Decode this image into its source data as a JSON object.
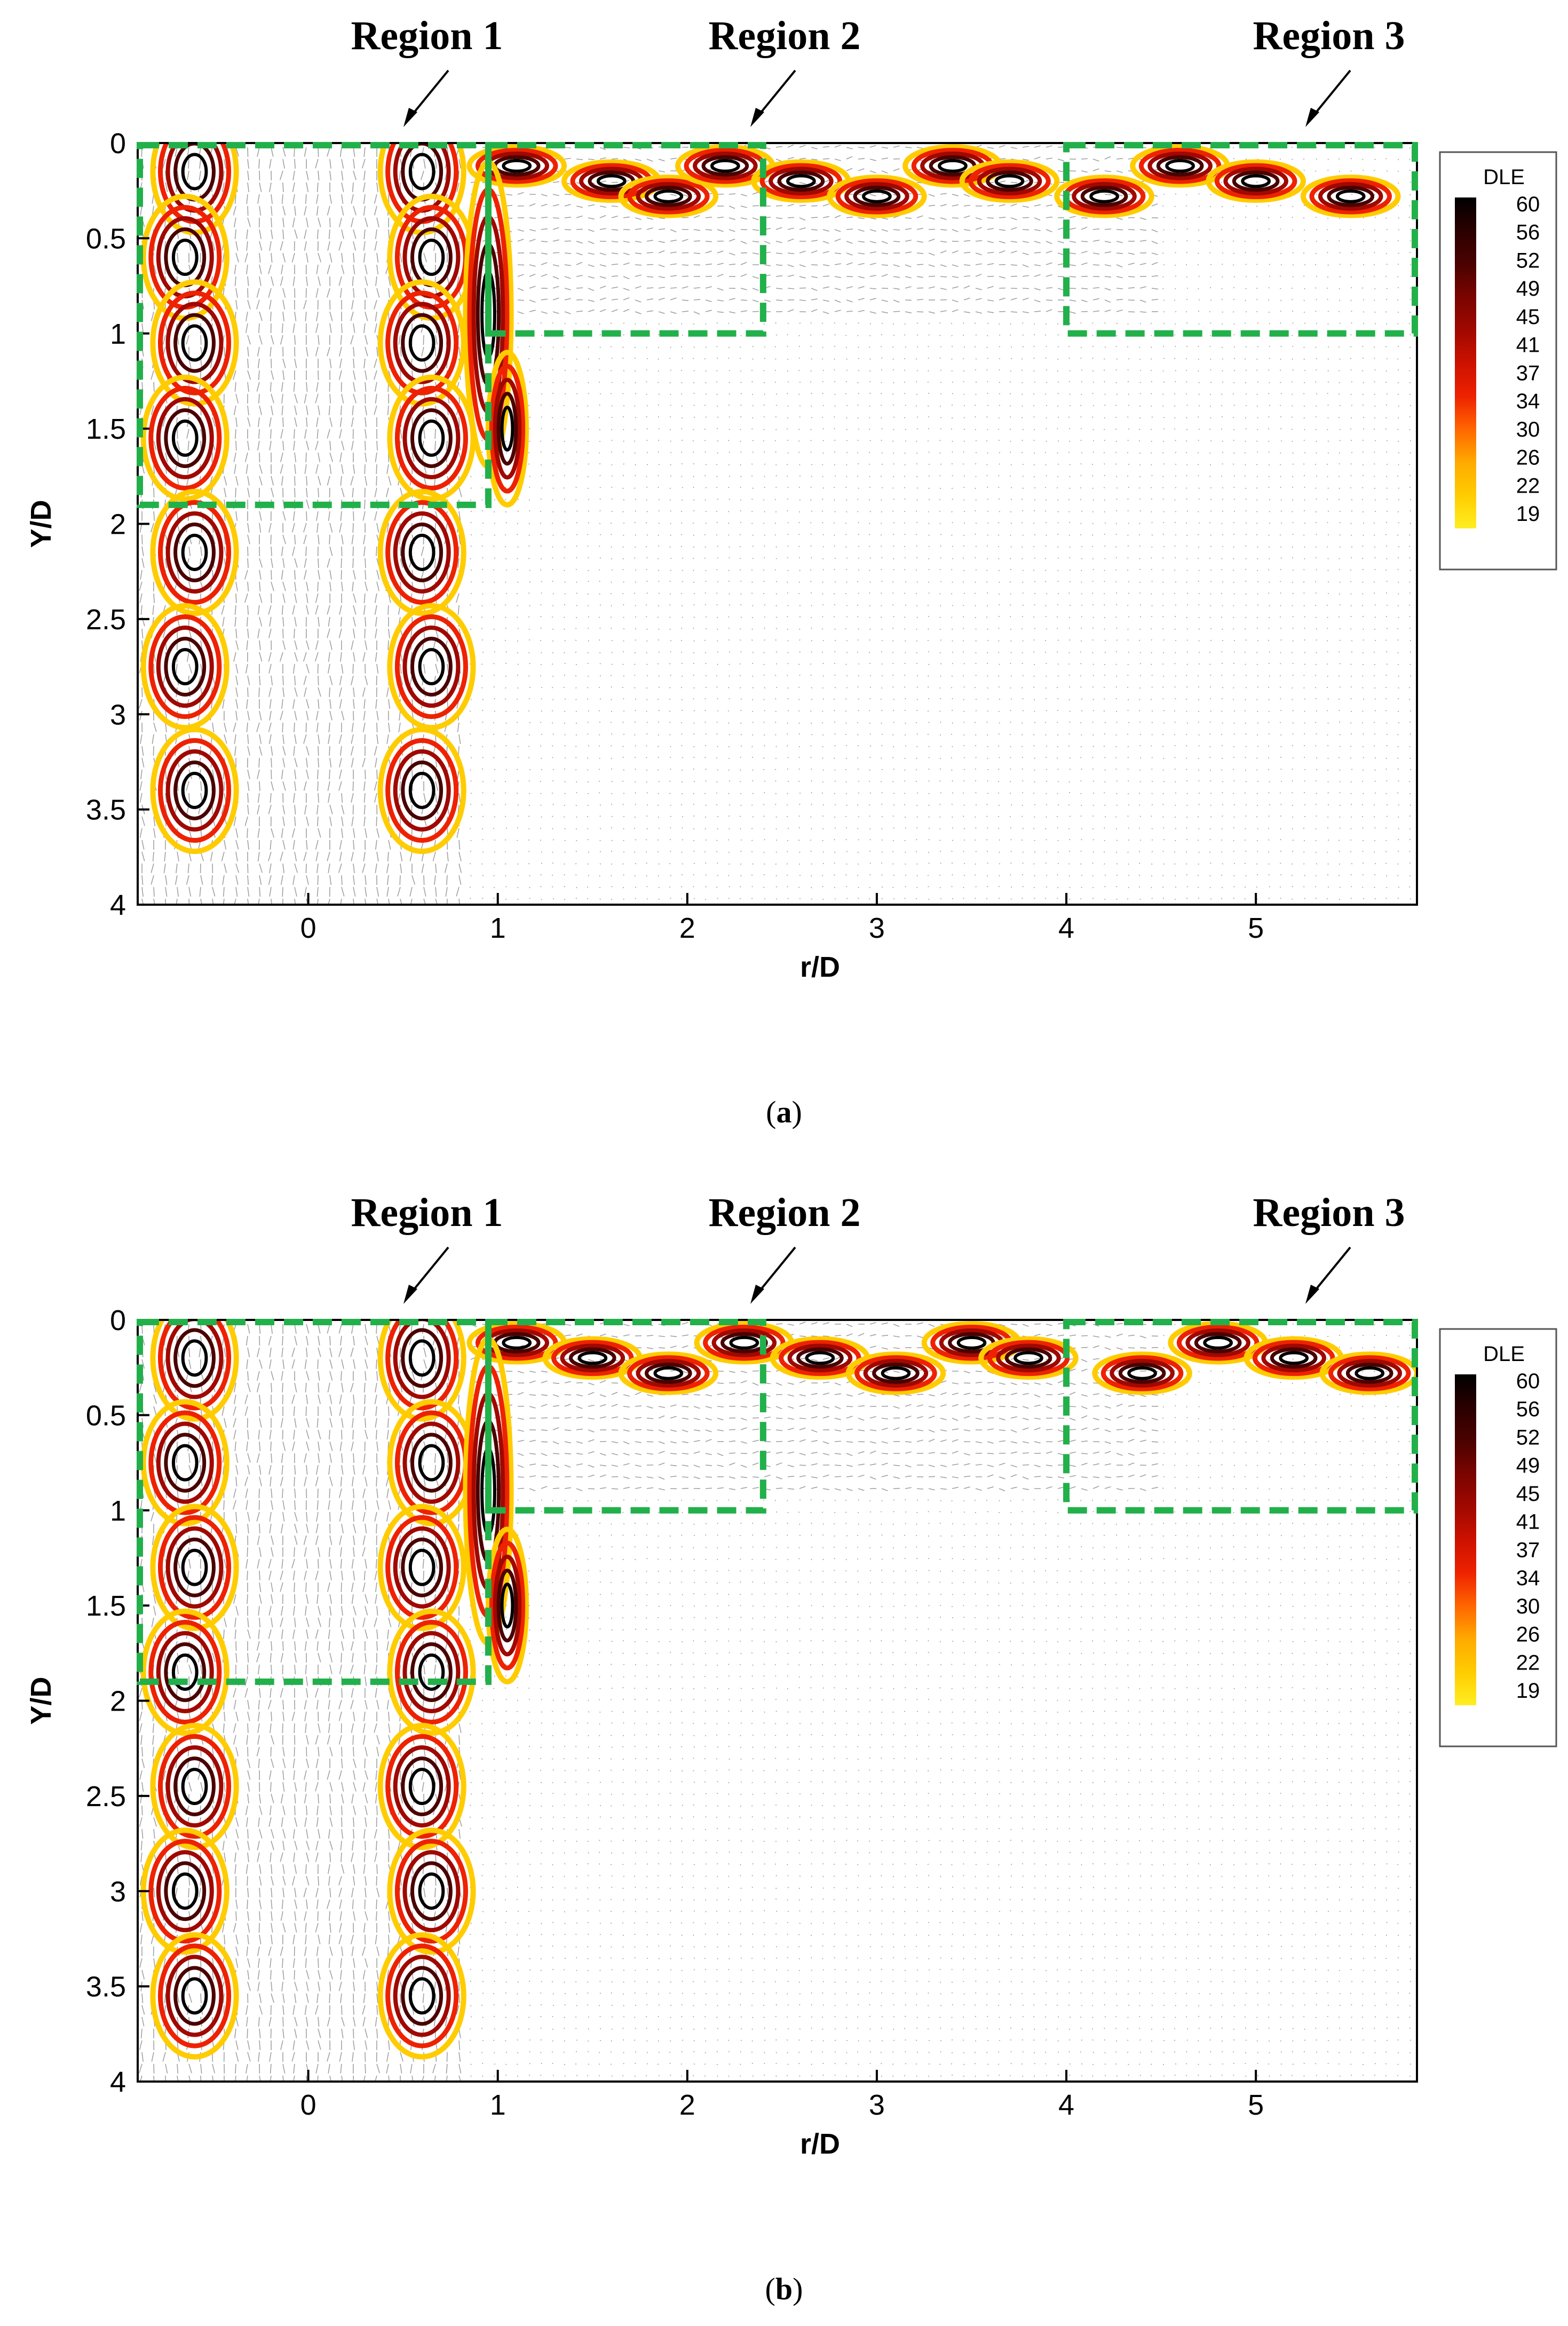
{
  "colors": {
    "region_box": "#22b04b",
    "dle_scale": [
      "#ffee22",
      "#ffcc00",
      "#ffaa00",
      "#ff6600",
      "#ee2200",
      "#cc1100",
      "#a00800",
      "#7a0400",
      "#4a0200",
      "#2a0000",
      "#000000"
    ]
  },
  "chart_data": [
    {
      "panel": "a",
      "caption_letter": "a",
      "type": "heatmap",
      "xlabel": "r/D",
      "ylabel": "Y/D",
      "xlim": [
        -0.9,
        5.85
      ],
      "ylim": [
        4.0,
        0.0
      ],
      "x_ticks": [
        "0",
        "1",
        "2",
        "3",
        "4",
        "5"
      ],
      "y_ticks": [
        "0",
        "0.5",
        "1",
        "1.5",
        "2",
        "2.5",
        "3",
        "3.5",
        "4"
      ],
      "colorbar": {
        "title": "DLE",
        "levels": [
          "60",
          "56",
          "52",
          "49",
          "45",
          "41",
          "37",
          "34",
          "30",
          "26",
          "22",
          "19"
        ]
      },
      "regions": [
        {
          "label": "Region 1",
          "r": [
            -0.9,
            0.95
          ],
          "y": [
            0.0,
            1.9
          ]
        },
        {
          "label": "Region 2",
          "r": [
            0.95,
            2.4
          ],
          "y": [
            0.0,
            1.0
          ]
        },
        {
          "label": "Region 3",
          "r": [
            4.0,
            5.85
          ],
          "y": [
            0.0,
            1.0
          ]
        }
      ]
    },
    {
      "panel": "b",
      "caption_letter": "b",
      "type": "heatmap",
      "xlabel": "r/D",
      "ylabel": "Y/D",
      "xlim": [
        -0.9,
        5.85
      ],
      "ylim": [
        4.0,
        0.0
      ],
      "x_ticks": [
        "0",
        "1",
        "2",
        "3",
        "4",
        "5"
      ],
      "y_ticks": [
        "0",
        "0.5",
        "1",
        "1.5",
        "2",
        "2.5",
        "3",
        "3.5",
        "4"
      ],
      "colorbar": {
        "title": "DLE",
        "levels": [
          "60",
          "56",
          "52",
          "49",
          "45",
          "41",
          "37",
          "34",
          "30",
          "26",
          "22",
          "19"
        ]
      },
      "regions": [
        {
          "label": "Region 1",
          "r": [
            -0.9,
            0.95
          ],
          "y": [
            0.0,
            1.9
          ]
        },
        {
          "label": "Region 2",
          "r": [
            0.95,
            2.4
          ],
          "y": [
            0.0,
            1.0
          ]
        },
        {
          "label": "Region 3",
          "r": [
            4.0,
            5.85
          ],
          "y": [
            0.0,
            1.0
          ]
        }
      ]
    }
  ]
}
